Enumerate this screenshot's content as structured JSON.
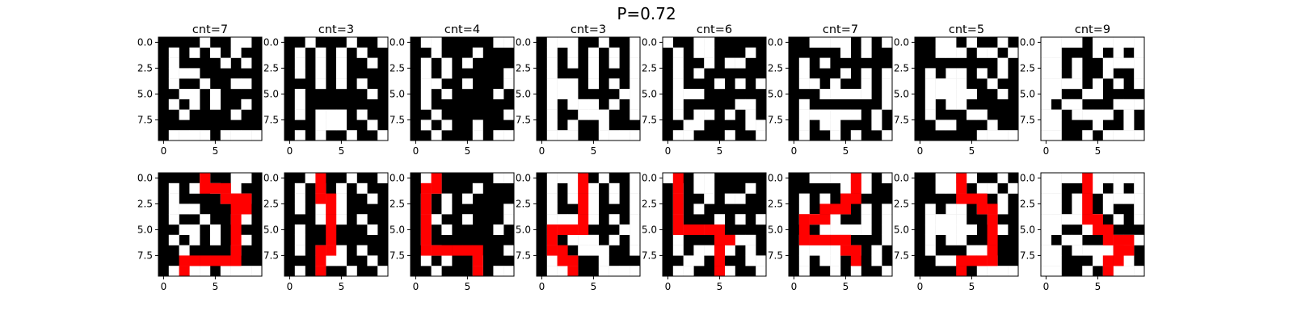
{
  "figure_title": "P=0.72",
  "chart_data": [
    {
      "type": "heatmap",
      "title": "cnt=7",
      "grid": [
        "0000100110",
        "0101010100",
        "0100001010",
        "0111000000",
        "0100100110",
        "0011010000",
        "0101010010",
        "0010000100",
        "0000000000",
        "0111101111"
      ]
    },
    {
      "type": "heatmap",
      "title": "cnt=3",
      "grid": [
        "0010001001",
        "0101010100",
        "0101010010",
        "0101010000",
        "0001010100",
        "0100000010",
        "0100000000",
        "0101110100",
        "0001110010",
        "0101001001"
      ]
    },
    {
      "type": "heatmap",
      "title": "cnt=4",
      "grid": [
        "0110000011",
        "0010001000",
        "0101010000",
        "0101000001",
        "0110010001",
        "0101000010",
        "0100000000",
        "0010000001",
        "0101001000",
        "0010001011"
      ]
    },
    {
      "type": "heatmap",
      "title": "cnt=3",
      "grid": [
        "0111001001",
        "0101010101",
        "0101010101",
        "0100010001",
        "0111010101",
        "0111000011",
        "0101110101",
        "0100111001",
        "0101001000",
        "0111001111"
      ]
    },
    {
      "type": "heatmap",
      "title": "cnt=6",
      "grid": [
        "1001100000",
        "0101100010",
        "0100101100",
        "0101000000",
        "0100010101",
        "0111000000",
        "0100000110",
        "0101101010",
        "0011000011",
        "0110001001"
      ]
    },
    {
      "type": "heatmap",
      "title": "cnt=7",
      "grid": [
        "0011110101",
        "0000010100",
        "0101000000",
        "0100010101",
        "0110100101",
        "0001111101",
        "0100000001",
        "0111111010",
        "0101100010",
        "0100101001"
      ]
    },
    {
      "type": "heatmap",
      "title": "cnt=5",
      "grid": [
        "0011010010",
        "0011101101",
        "0000000010",
        "0101101010",
        "0111100100",
        "0111110010",
        "0101100000",
        "0100011000",
        "0011000100",
        "0000001111"
      ]
    },
    {
      "type": "heatmap",
      "title": "cnt=9",
      "grid": [
        "1111011111",
        "1100010101",
        "1101001111",
        "1101001001",
        "1111010101",
        "1100110000",
        "1011000111",
        "1101111010",
        "1100010010",
        "1100101111"
      ]
    },
    {
      "type": "heatmap",
      "title": "",
      "grid": [
        "0000100110",
        "0101010100",
        "0100001010",
        "0111000000",
        "0100100110",
        "0011010000",
        "0101010010",
        "0010000100",
        "0000000000",
        "0111101111"
      ],
      "path": [
        [
          4,
          0
        ],
        [
          4,
          1
        ],
        [
          5,
          1
        ],
        [
          6,
          1
        ],
        [
          6,
          2
        ],
        [
          7,
          2
        ],
        [
          8,
          2
        ],
        [
          8,
          3
        ],
        [
          7,
          3
        ],
        [
          7,
          4
        ],
        [
          7,
          5
        ],
        [
          7,
          6
        ],
        [
          7,
          7
        ],
        [
          7,
          8
        ],
        [
          6,
          8
        ],
        [
          5,
          8
        ],
        [
          4,
          8
        ],
        [
          3,
          8
        ],
        [
          2,
          8
        ],
        [
          2,
          9
        ]
      ]
    },
    {
      "type": "heatmap",
      "title": "",
      "grid": [
        "0010001001",
        "0101010100",
        "0101010010",
        "0101010000",
        "0001010100",
        "0100000010",
        "0100000000",
        "0101110100",
        "0001110010",
        "0101001001"
      ],
      "path": [
        [
          3,
          0
        ],
        [
          3,
          1
        ],
        [
          3,
          2
        ],
        [
          4,
          2
        ],
        [
          4,
          3
        ],
        [
          4,
          4
        ],
        [
          4,
          5
        ],
        [
          4,
          6
        ],
        [
          4,
          7
        ],
        [
          3,
          7
        ],
        [
          3,
          8
        ],
        [
          3,
          9
        ]
      ]
    },
    {
      "type": "heatmap",
      "title": "",
      "grid": [
        "0110000011",
        "0010001000",
        "0101010000",
        "0101000001",
        "0110010001",
        "0101000010",
        "0100000000",
        "0010000001",
        "0101001000",
        "0010001011"
      ],
      "path": [
        [
          2,
          0
        ],
        [
          2,
          1
        ],
        [
          1,
          1
        ],
        [
          1,
          2
        ],
        [
          1,
          3
        ],
        [
          1,
          4
        ],
        [
          1,
          5
        ],
        [
          1,
          6
        ],
        [
          1,
          7
        ],
        [
          2,
          7
        ],
        [
          3,
          7
        ],
        [
          4,
          7
        ],
        [
          5,
          7
        ],
        [
          6,
          7
        ],
        [
          6,
          8
        ],
        [
          6,
          9
        ]
      ]
    },
    {
      "type": "heatmap",
      "title": "",
      "grid": [
        "0111001001",
        "0101010101",
        "0101010101",
        "0100010001",
        "0111010101",
        "0111000011",
        "0101110101",
        "0100111001",
        "0101001000",
        "0111001111"
      ],
      "path": [
        [
          4,
          0
        ],
        [
          4,
          1
        ],
        [
          4,
          2
        ],
        [
          4,
          3
        ],
        [
          4,
          4
        ],
        [
          4,
          5
        ],
        [
          3,
          5
        ],
        [
          2,
          5
        ],
        [
          1,
          5
        ],
        [
          1,
          6
        ],
        [
          1,
          7
        ],
        [
          2,
          7
        ],
        [
          2,
          8
        ],
        [
          3,
          8
        ],
        [
          3,
          9
        ]
      ]
    },
    {
      "type": "heatmap",
      "title": "",
      "grid": [
        "1001100000",
        "0101100010",
        "0100101100",
        "0101000000",
        "0100010101",
        "0111000000",
        "0100000110",
        "0101101010",
        "0011000011",
        "0110001001"
      ],
      "path": [
        [
          1,
          0
        ],
        [
          1,
          1
        ],
        [
          1,
          2
        ],
        [
          1,
          3
        ],
        [
          1,
          4
        ],
        [
          1,
          5
        ],
        [
          2,
          5
        ],
        [
          3,
          5
        ],
        [
          4,
          5
        ],
        [
          5,
          5
        ],
        [
          6,
          6
        ],
        [
          5,
          6
        ],
        [
          5,
          7
        ],
        [
          5,
          8
        ],
        [
          5,
          9
        ]
      ]
    },
    {
      "type": "heatmap",
      "title": "",
      "grid": [
        "0011110101",
        "0000010100",
        "0101000000",
        "0100010101",
        "0110100101",
        "0001111101",
        "0100000001",
        "0111111010",
        "0101100010",
        "0100101001"
      ],
      "path": [
        [
          6,
          0
        ],
        [
          6,
          1
        ],
        [
          6,
          2
        ],
        [
          5,
          2
        ],
        [
          5,
          3
        ],
        [
          4,
          3
        ],
        [
          3,
          3
        ],
        [
          3,
          4
        ],
        [
          2,
          4
        ],
        [
          1,
          4
        ],
        [
          1,
          5
        ],
        [
          1,
          6
        ],
        [
          2,
          6
        ],
        [
          3,
          6
        ],
        [
          4,
          6
        ],
        [
          5,
          6
        ],
        [
          5,
          7
        ],
        [
          6,
          7
        ],
        [
          6,
          8
        ]
      ]
    },
    {
      "type": "heatmap",
      "title": "",
      "grid": [
        "0011010010",
        "0011101101",
        "0000000010",
        "0101101010",
        "0111100100",
        "0111110010",
        "0101100000",
        "0100011000",
        "0011000100",
        "0000001111"
      ],
      "path": [
        [
          4,
          0
        ],
        [
          4,
          1
        ],
        [
          4,
          2
        ],
        [
          5,
          2
        ],
        [
          6,
          2
        ],
        [
          6,
          3
        ],
        [
          7,
          3
        ],
        [
          7,
          4
        ],
        [
          7,
          5
        ],
        [
          7,
          6
        ],
        [
          7,
          7
        ],
        [
          7,
          8
        ],
        [
          6,
          8
        ],
        [
          5,
          8
        ],
        [
          4,
          8
        ],
        [
          4,
          9
        ]
      ]
    },
    {
      "type": "heatmap",
      "title": "",
      "grid": [
        "1111011111",
        "1100010101",
        "1101001111",
        "1101001001",
        "1111010101",
        "1100110000",
        "1011000111",
        "1101111010",
        "1100010010",
        "1100101111"
      ],
      "path": [
        [
          4,
          0
        ],
        [
          4,
          1
        ],
        [
          4,
          2
        ],
        [
          4,
          3
        ],
        [
          4,
          4
        ],
        [
          5,
          4
        ],
        [
          5,
          5
        ],
        [
          6,
          5
        ],
        [
          6,
          6
        ],
        [
          7,
          6
        ],
        [
          8,
          6
        ],
        [
          8,
          7
        ],
        [
          7,
          7
        ],
        [
          7,
          8
        ],
        [
          6,
          8
        ],
        [
          6,
          9
        ]
      ]
    }
  ],
  "axes": {
    "ytick_labels": [
      "0.0",
      "2.5",
      "5.0",
      "7.5"
    ],
    "ytick_values": [
      0,
      2.5,
      5,
      7.5
    ],
    "xtick_labels": [
      "0",
      "5"
    ],
    "xtick_values": [
      0,
      5
    ],
    "cell_extent": [
      -0.5,
      9.5
    ]
  },
  "colors": {
    "wall": "#000000",
    "open": "#ffffff",
    "path": "#ff0000"
  }
}
